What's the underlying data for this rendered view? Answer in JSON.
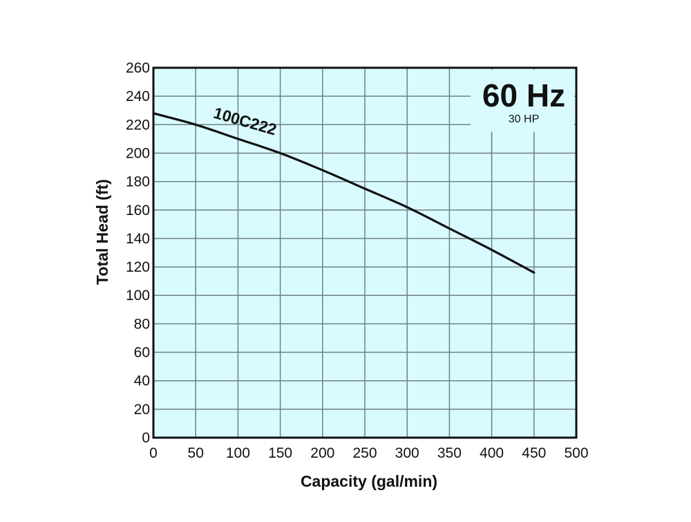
{
  "chart_data": {
    "type": "line",
    "title": "60 Hz",
    "subtitle": "30 HP",
    "xlabel": "Capacity (gal/min)",
    "ylabel": "Total Head (ft)",
    "xlim": [
      0,
      500
    ],
    "ylim": [
      0,
      260
    ],
    "xticks": [
      0,
      50,
      100,
      150,
      200,
      250,
      300,
      350,
      400,
      450,
      500
    ],
    "yticks": [
      0,
      20,
      40,
      60,
      80,
      100,
      120,
      140,
      160,
      180,
      200,
      220,
      240,
      260
    ],
    "grid": true,
    "series": [
      {
        "name": "100C222",
        "x": [
          0,
          50,
          100,
          150,
          200,
          250,
          300,
          350,
          400,
          450
        ],
        "y": [
          228,
          220,
          210,
          200,
          188,
          175,
          162,
          147,
          132,
          116
        ]
      }
    ]
  },
  "colors": {
    "plot_background": "#d9fbff",
    "grid": "#6f7f86",
    "axis": "#111111",
    "curve": "#111111"
  }
}
